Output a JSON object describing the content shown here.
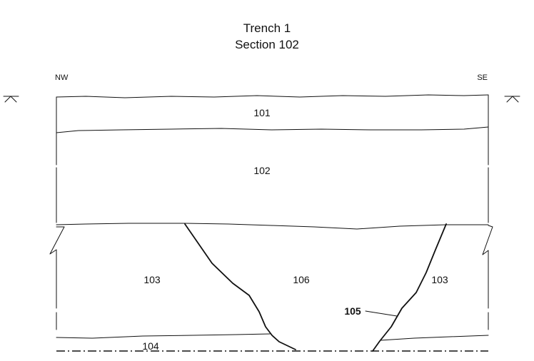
{
  "title": {
    "line1": "Trench 1",
    "line2": "Section 102"
  },
  "orientation": {
    "left": "NW",
    "right": "SE"
  },
  "contexts": {
    "c101": "101",
    "c102": "102",
    "c103_left": "103",
    "c106": "106",
    "c103_right": "103",
    "c104": "104"
  },
  "cut": {
    "label": "105"
  }
}
